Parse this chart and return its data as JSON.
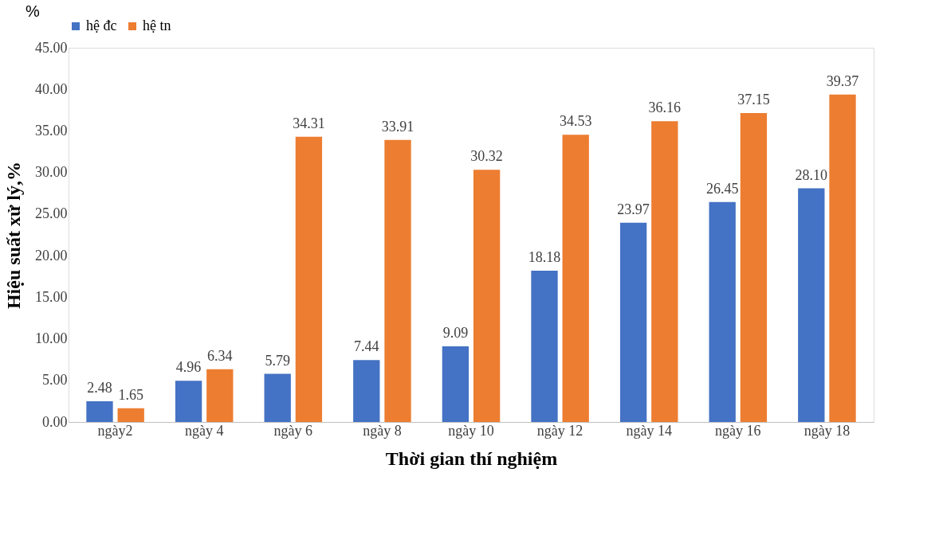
{
  "chart_data": {
    "type": "bar",
    "xlabel": "Thời gian thí nghiệm",
    "ylabel": "Hiệu suất xử lý,%",
    "annotations": [
      "%"
    ],
    "categories": [
      "ngày2",
      "ngày 4",
      "ngày 6",
      "ngày 8",
      "ngày 10",
      "ngày 12",
      "ngày 14",
      "ngày 16",
      "ngày 18"
    ],
    "series": [
      {
        "name": "hệ đc",
        "color": "#4472c4",
        "values": [
          2.48,
          4.96,
          5.79,
          7.44,
          9.09,
          18.18,
          23.97,
          26.45,
          28.1
        ],
        "value_labels": [
          "2.48",
          "4.96",
          "5.79",
          "7.44",
          "9.09",
          "18.18",
          "23.97",
          "26.45",
          "28.10"
        ]
      },
      {
        "name": "hệ tn",
        "color": "#ed7d31",
        "values": [
          1.65,
          6.34,
          34.31,
          33.91,
          30.32,
          34.53,
          36.16,
          37.15,
          39.37
        ],
        "value_labels": [
          "1.65",
          "6.34",
          "34.31",
          "33.91",
          "30.32",
          "34.53",
          "36.16",
          "37.15",
          "39.37"
        ]
      }
    ],
    "ylim": [
      0,
      45
    ],
    "yticks": [
      {
        "value": 0,
        "label": "0.00"
      },
      {
        "value": 5,
        "label": "5.00"
      },
      {
        "value": 10,
        "label": "10.00"
      },
      {
        "value": 15,
        "label": "15.00"
      },
      {
        "value": 20,
        "label": "20.00"
      },
      {
        "value": 25,
        "label": "25.00"
      },
      {
        "value": 30,
        "label": "30.00"
      },
      {
        "value": 35,
        "label": "35.00"
      },
      {
        "value": 40,
        "label": "40.00"
      },
      {
        "value": 45,
        "label": "45.00"
      }
    ],
    "grid": false,
    "legend": "top"
  }
}
